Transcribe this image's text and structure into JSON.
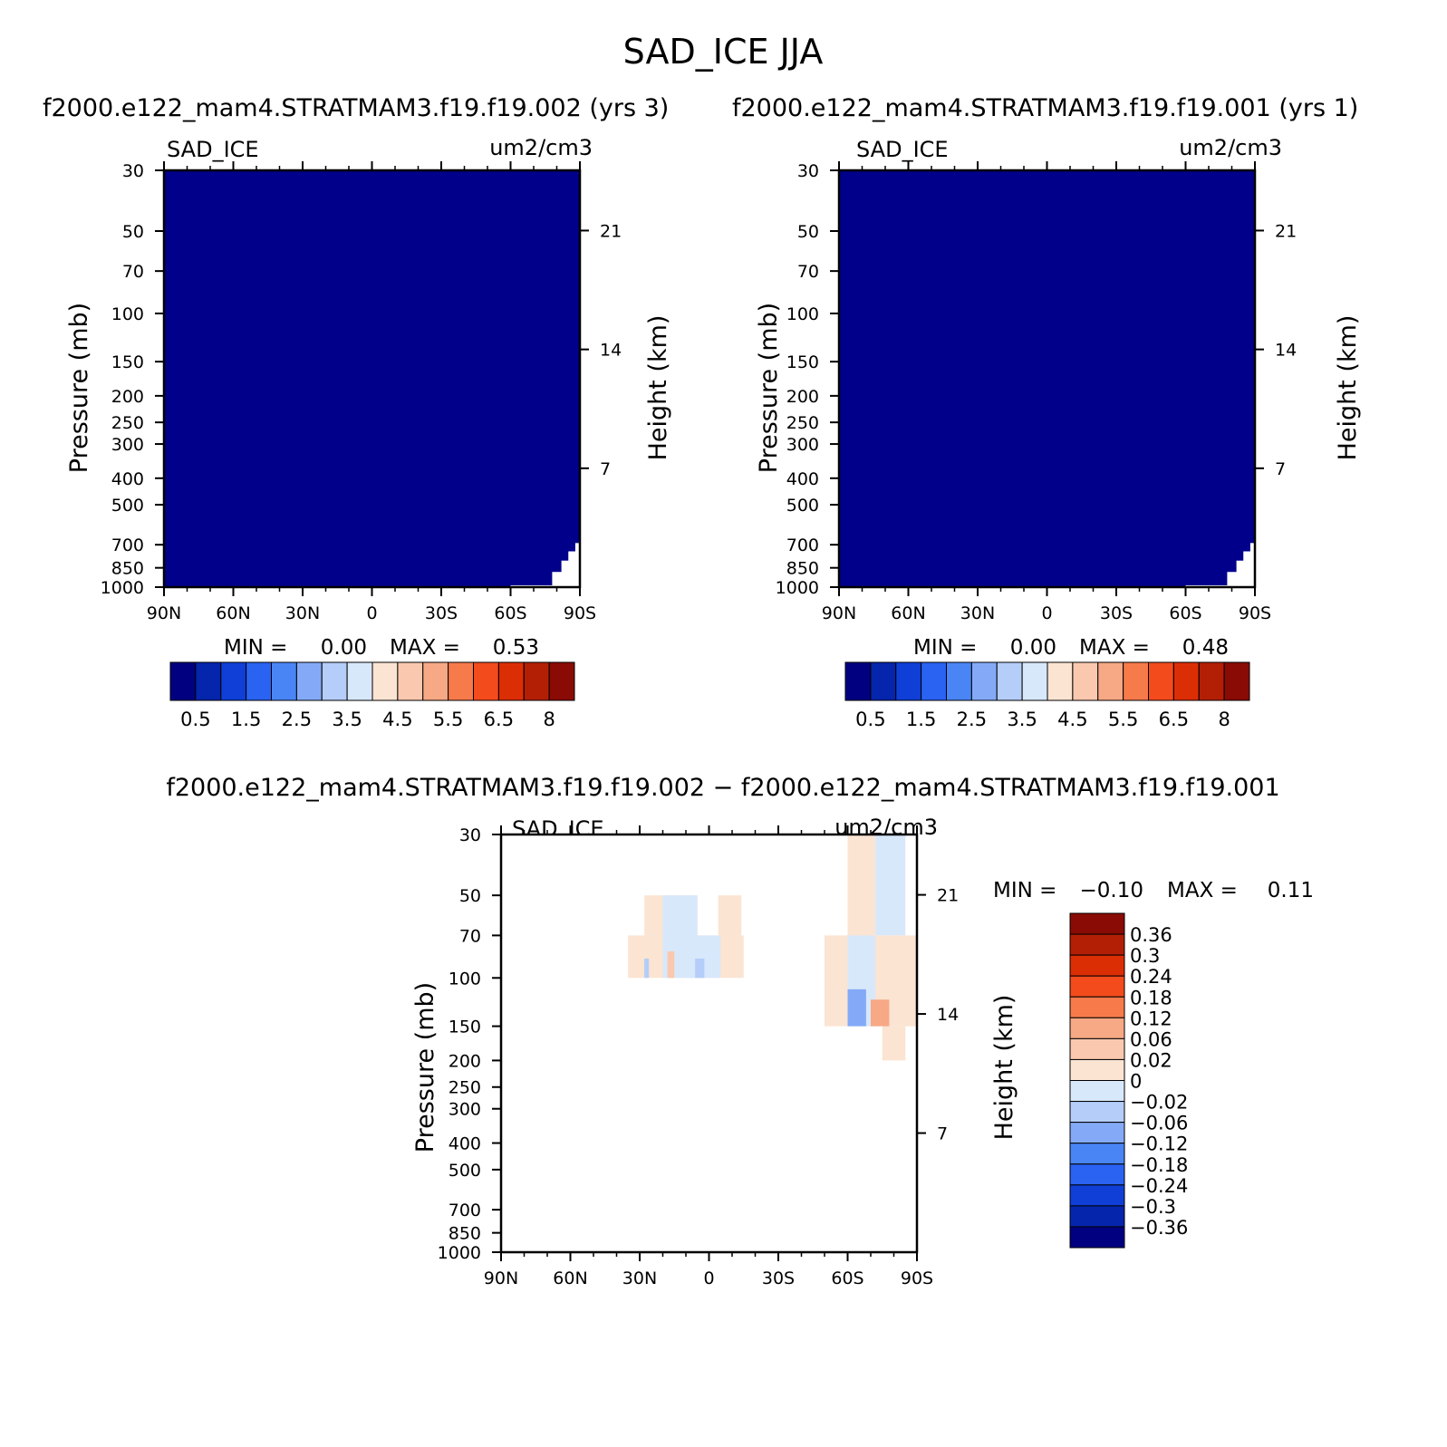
{
  "title": "SAD_ICE JJA",
  "colors": {
    "bg_field": "#00008b",
    "cmap": [
      "#000080",
      "#0525ad",
      "#0f3fd7",
      "#2a62f2",
      "#4a85f5",
      "#84aaf7",
      "#b4cdf9",
      "#d8e8fb",
      "#fbe4d2",
      "#f9c8ae",
      "#f7a884",
      "#f77a4b",
      "#f34b1c",
      "#dc2e05",
      "#b31f05",
      "#8a0b05"
    ]
  },
  "chart_data": [
    {
      "type": "heatmap",
      "case_title": "f2000.e122_mam4.STRATMAM3.f19.f19.002 (yrs 3)",
      "var_label": "SAD_ICE",
      "units": "um2/cm3",
      "xlabel": "",
      "ylabel": "Pressure (mb)",
      "ylabel_right": "Height (km)",
      "x_ticks": [
        "90N",
        "60N",
        "30N",
        "0",
        "30S",
        "60S",
        "90S"
      ],
      "x_values": [
        90,
        60,
        30,
        0,
        -30,
        -60,
        -90
      ],
      "y_ticks": [
        30,
        50,
        70,
        100,
        150,
        200,
        250,
        300,
        400,
        500,
        700,
        850,
        1000
      ],
      "y_ticks_right": [
        21,
        14,
        7
      ],
      "ylim": [
        1000,
        30
      ],
      "log_scale_y": true,
      "stats": {
        "min_label": "MIN =",
        "min": "0.00",
        "max_label": "MAX =",
        "max": "0.53"
      },
      "colorbar": {
        "orientation": "horizontal",
        "labels": [
          "0.5",
          "1.5",
          "2.5",
          "3.5",
          "4.5",
          "5.5",
          "6.5",
          "8"
        ]
      },
      "field": "nearly uniform 0 to 0.5 (lowest color) everywhere; no data below ~700 mb near 60S–90S"
    },
    {
      "type": "heatmap",
      "case_title": "f2000.e122_mam4.STRATMAM3.f19.f19.001 (yrs 1)",
      "var_label": "SAD_ICE",
      "units": "um2/cm3",
      "xlabel": "",
      "ylabel": "Pressure (mb)",
      "ylabel_right": "Height (km)",
      "x_ticks": [
        "90N",
        "60N",
        "30N",
        "0",
        "30S",
        "60S",
        "90S"
      ],
      "x_values": [
        90,
        60,
        30,
        0,
        -30,
        -60,
        -90
      ],
      "y_ticks": [
        30,
        50,
        70,
        100,
        150,
        200,
        250,
        300,
        400,
        500,
        700,
        850,
        1000
      ],
      "y_ticks_right": [
        21,
        14,
        7
      ],
      "ylim": [
        1000,
        30
      ],
      "log_scale_y": true,
      "stats": {
        "min_label": "MIN =",
        "min": "0.00",
        "max_label": "MAX =",
        "max": "0.48"
      },
      "colorbar": {
        "orientation": "horizontal",
        "labels": [
          "0.5",
          "1.5",
          "2.5",
          "3.5",
          "4.5",
          "5.5",
          "6.5",
          "8"
        ]
      },
      "field": "nearly uniform 0 to 0.5 (lowest color) everywhere; no data below ~700 mb near 60S–90S"
    },
    {
      "type": "heatmap",
      "case_title": "f2000.e122_mam4.STRATMAM3.f19.f19.002 − f2000.e122_mam4.STRATMAM3.f19.f19.001",
      "var_label": "SAD_ICE",
      "units": "um2/cm3",
      "xlabel": "",
      "ylabel": "Pressure (mb)",
      "ylabel_right": "Height (km)",
      "x_ticks": [
        "90N",
        "60N",
        "30N",
        "0",
        "30S",
        "60S",
        "90S"
      ],
      "x_values": [
        90,
        60,
        30,
        0,
        -30,
        -60,
        -90
      ],
      "y_ticks": [
        30,
        50,
        70,
        100,
        150,
        200,
        250,
        300,
        400,
        500,
        700,
        850,
        1000
      ],
      "y_ticks_right": [
        21,
        14,
        7
      ],
      "ylim": [
        1000,
        30
      ],
      "log_scale_y": true,
      "stats": {
        "min_label": "MIN =",
        "min": "−0.10",
        "max_label": "MAX =",
        "max": "0.11"
      },
      "colorbar": {
        "orientation": "vertical",
        "labels": [
          "0.36",
          "0.3",
          "0.24",
          "0.18",
          "0.12",
          "0.06",
          "0.02",
          "0",
          "−0.02",
          "−0.06",
          "−0.12",
          "−0.18",
          "−0.24",
          "−0.3",
          "−0.36"
        ]
      },
      "regions": [
        {
          "lat": [
            28,
            5
          ],
          "p": [
            50,
            70
          ],
          "range": [
            0,
            0.02
          ]
        },
        {
          "lat": [
            -4,
            -14
          ],
          "p": [
            50,
            70
          ],
          "range": [
            0,
            0.02
          ]
        },
        {
          "lat": [
            35,
            -15
          ],
          "p": [
            70,
            100
          ],
          "range": [
            0,
            0.02
          ]
        },
        {
          "lat": [
            20,
            5
          ],
          "p": [
            50,
            100
          ],
          "range": [
            -0.02,
            0
          ]
        },
        {
          "lat": [
            10,
            -5
          ],
          "p": [
            70,
            100
          ],
          "range": [
            -0.02,
            0
          ]
        },
        {
          "lat": [
            -60,
            -72
          ],
          "p": [
            30,
            150
          ],
          "range": [
            0,
            0.02
          ]
        },
        {
          "lat": [
            -72,
            -85
          ],
          "p": [
            30,
            70
          ],
          "range": [
            -0.02,
            0
          ]
        },
        {
          "lat": [
            -50,
            -90
          ],
          "p": [
            70,
            150
          ],
          "range": [
            0,
            0.02
          ]
        },
        {
          "lat": [
            -60,
            -72
          ],
          "p": [
            70,
            150
          ],
          "range": [
            -0.02,
            0
          ]
        },
        {
          "lat": [
            -75,
            -85
          ],
          "p": [
            150,
            200
          ],
          "range": [
            0,
            0.02
          ]
        },
        {
          "lat": [
            -60,
            -68
          ],
          "p": [
            110,
            150
          ],
          "range": [
            -0.12,
            -0.06
          ]
        },
        {
          "lat": [
            -70,
            -78
          ],
          "p": [
            120,
            150
          ],
          "range": [
            0.06,
            0.12
          ]
        },
        {
          "lat": [
            18,
            15
          ],
          "p": [
            80,
            100
          ],
          "range": [
            0.02,
            0.06
          ]
        },
        {
          "lat": [
            28,
            26
          ],
          "p": [
            85,
            100
          ],
          "range": [
            -0.06,
            -0.02
          ]
        },
        {
          "lat": [
            6,
            2
          ],
          "p": [
            85,
            100
          ],
          "range": [
            -0.06,
            -0.02
          ]
        }
      ]
    }
  ]
}
